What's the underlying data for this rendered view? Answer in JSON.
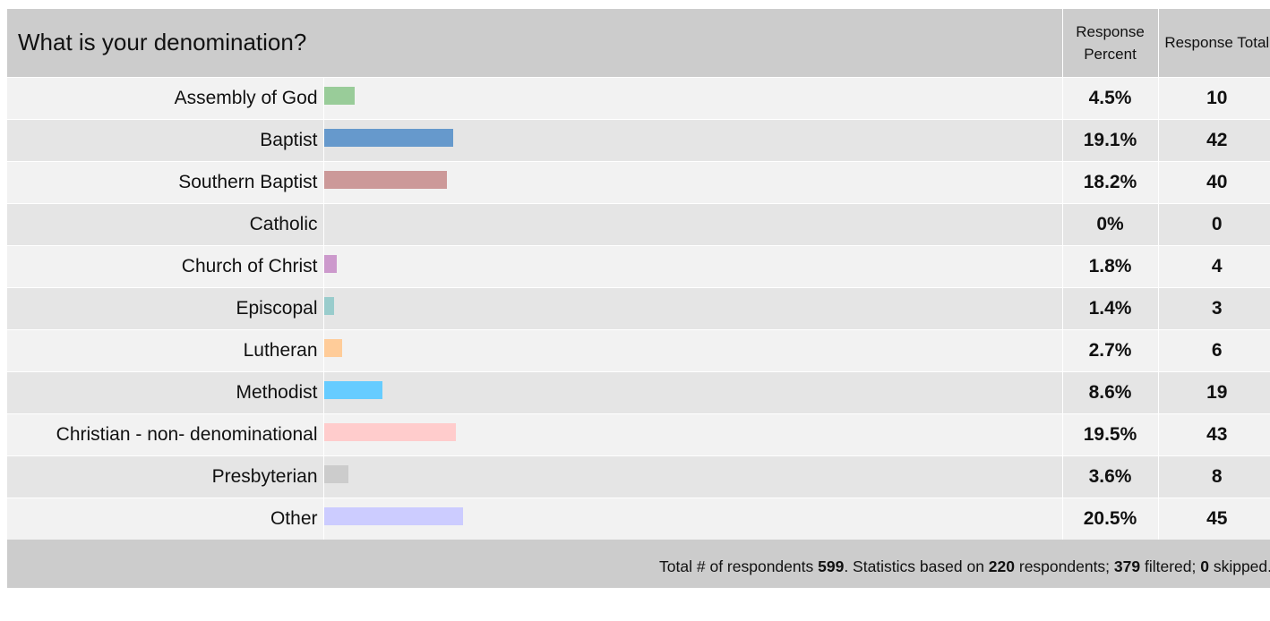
{
  "question": "What is your denomination?",
  "header": {
    "percent_label": "Response Percent",
    "total_label": "Response Total"
  },
  "colors": {
    "Assembly of God": "#99cc99",
    "Baptist": "#6699cc",
    "Southern Baptist": "#cc9999",
    "Catholic": "#cccc99",
    "Church of Christ": "#cc99cc",
    "Episcopal": "#99cccc",
    "Lutheran": "#ffcc99",
    "Methodist": "#66ccff",
    "Christian - non-denominational": "#ffcccc",
    "Presbyterian": "#cccccc",
    "Other": "#ccccff"
  },
  "chart_data": {
    "type": "bar",
    "orientation": "horizontal",
    "title": "What is your denomination?",
    "categories": [
      "Assembly of God",
      "Baptist",
      "Southern Baptist",
      "Catholic",
      "Church of Christ",
      "Episcopal",
      "Lutheran",
      "Methodist",
      "Christian - non-denominational",
      "Presbyterian",
      "Other"
    ],
    "category_display": [
      "Assembly of God",
      "Baptist",
      "Southern Baptist",
      "Catholic",
      "Church of Christ",
      "Episcopal",
      "Lutheran",
      "Methodist",
      "Christian - non- denominational",
      "Presbyterian",
      "Other"
    ],
    "percent_values": [
      4.5,
      19.1,
      18.2,
      0,
      1.8,
      1.4,
      2.7,
      8.6,
      19.5,
      3.6,
      20.5
    ],
    "percent_labels": [
      "4.5%",
      "19.1%",
      "18.2%",
      "0%",
      "1.8%",
      "1.4%",
      "2.7%",
      "8.6%",
      "19.5%",
      "3.6%",
      "20.5%"
    ],
    "totals": [
      "10",
      "42",
      "40",
      "0",
      "4",
      "3",
      "6",
      "19",
      "43",
      "8",
      "45"
    ]
  },
  "footer": {
    "t1": "Total # of respondents ",
    "respondents": "599",
    "t2": ". Statistics based on ",
    "based_on": "220",
    "t3": " respondents; ",
    "filtered": "379",
    "t4": " filtered; ",
    "skipped": "0",
    "t5": " skipped."
  }
}
